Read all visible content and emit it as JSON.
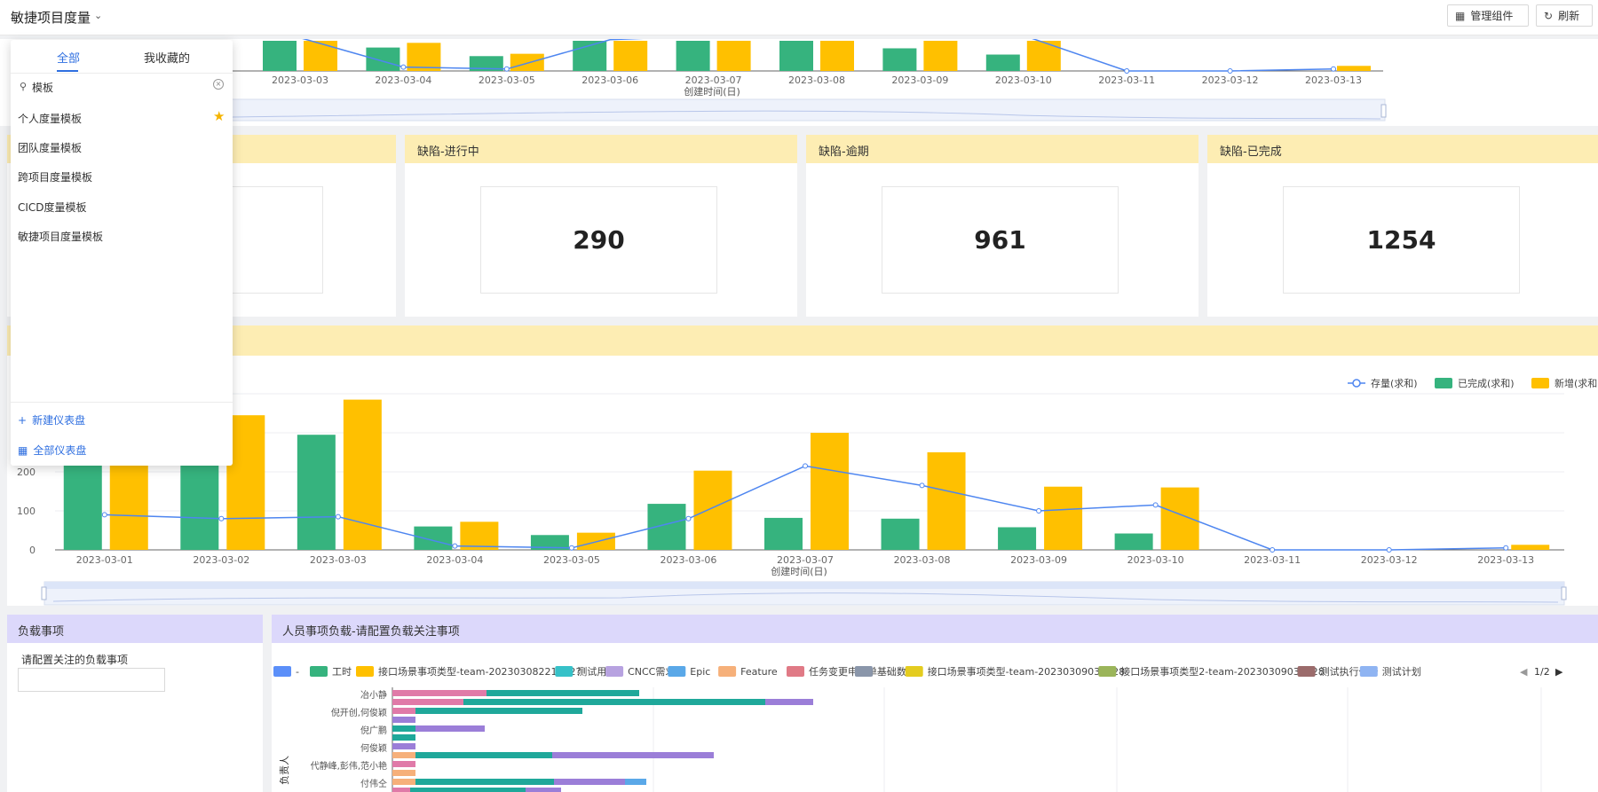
{
  "header": {
    "title": "敏捷项目度量",
    "manage_button": "管理组件",
    "refresh_button": "刷新"
  },
  "dropdown": {
    "tab_all": "全部",
    "tab_fav": "我收藏的",
    "search_value": "模板",
    "items": [
      "个人度量模板",
      "团队度量模板",
      "跨项目度量模板",
      "CICD度量模板",
      "敏捷项目度量模板"
    ],
    "new_dashboard": "新建仪表盘",
    "all_dashboards": "全部仪表盘"
  },
  "cards": [
    {
      "title": "缺陷-进行中",
      "value": "290"
    },
    {
      "title": "缺陷-逾期",
      "value": "961"
    },
    {
      "title": "缺陷-已完成",
      "value": "1254"
    }
  ],
  "load_panel": {
    "title": "负载事项",
    "prompt": "请配置关注的负载事项"
  },
  "people_panel": {
    "title": "人员事项负载-请配置负载关注事项",
    "legend": [
      {
        "name": "-",
        "color": "#5b8ff9"
      },
      {
        "name": "工时",
        "color": "#36b37e"
      },
      {
        "name": "接口场景事项类型-team-20230308221702?",
        "color": "#ffc000"
      },
      {
        "name": "测试用例",
        "color": "#36c1c8"
      },
      {
        "name": "CNCC需求",
        "color": "#b7a2e0"
      },
      {
        "name": "Epic",
        "color": "#5aa8e8"
      },
      {
        "name": "Feature",
        "color": "#f6b07a"
      },
      {
        "name": "任务变更申请单",
        "color": "#e07a86"
      },
      {
        "name": "基础数据",
        "color": "#8a96aa"
      },
      {
        "name": "接口场景事项类型-team-20230309033228",
        "color": "#e4cc1f"
      },
      {
        "name": "接口场景事项类型2-team-20230309033228",
        "color": "#9bb55a"
      },
      {
        "name": "测试执行任务",
        "color": "#9b6b6b"
      },
      {
        "name": "测试计划",
        "color": "#8fb4f2"
      }
    ],
    "page": "1/2",
    "ylabel": "负责人",
    "people": [
      "冶小静",
      "倪开创,何俊颖",
      "倪广鹏",
      "何俊颖",
      "代静峰,彭伟,范小艳",
      "付伟仝"
    ]
  },
  "chart_data": [
    {
      "type": "bar",
      "title": "",
      "categories": [
        "2023-03-01",
        "2023-03-02",
        "2023-03-03",
        "2023-03-04",
        "2023-03-05",
        "2023-03-06",
        "2023-03-07",
        "2023-03-08",
        "2023-03-09",
        "2023-03-10",
        "2023-03-11",
        "2023-03-12",
        "2023-03-13"
      ],
      "xlabel": "创建时间(日)",
      "ylabel": "",
      "ylim": [
        0,
        400
      ],
      "yticks": [
        0,
        100,
        200
      ],
      "legend_position": "top-right",
      "series": [
        {
          "name": "存量(求和)",
          "kind": "line",
          "color": "#4e86f0",
          "values": [
            90,
            80,
            85,
            10,
            5,
            80,
            215,
            165,
            100,
            115,
            0,
            0,
            5
          ]
        },
        {
          "name": "已完成(求和)",
          "kind": "bar",
          "color": "#36b37e",
          "values": [
            230,
            230,
            295,
            60,
            38,
            118,
            82,
            80,
            58,
            42,
            0,
            0,
            0
          ]
        },
        {
          "name": "新增(求和)",
          "kind": "bar",
          "color": "#ffc000",
          "values": [
            230,
            345,
            385,
            72,
            44,
            203,
            300,
            250,
            162,
            160,
            0,
            0,
            13
          ]
        }
      ]
    },
    {
      "type": "bar",
      "title": "",
      "categories": [
        "2023-03-03",
        "2023-03-04",
        "2023-03-05",
        "2023-03-06",
        "2023-03-07",
        "2023-03-08",
        "2023-03-09",
        "2023-03-10",
        "2023-03-11",
        "2023-03-12",
        "2023-03-13"
      ],
      "xlabel": "创建时间(日)",
      "series": [
        {
          "name": "已完成(求和)",
          "values": [
            295,
            60,
            38,
            118,
            82,
            80,
            58,
            42,
            0,
            0,
            0
          ]
        },
        {
          "name": "新增(求和)",
          "values": [
            385,
            72,
            44,
            203,
            300,
            250,
            162,
            160,
            0,
            0,
            13
          ]
        },
        {
          "name": "存量(求和)",
          "values": [
            85,
            10,
            5,
            80,
            215,
            165,
            100,
            115,
            0,
            0,
            5
          ]
        }
      ]
    },
    {
      "type": "bar",
      "title": "",
      "ylabel": "负责人",
      "categories": [
        "冶小静",
        "倪开创,何俊颖",
        "倪广鹏",
        "何俊颖",
        "代静峰,彭伟,范小艳",
        "付伟仝"
      ],
      "series": []
    }
  ]
}
